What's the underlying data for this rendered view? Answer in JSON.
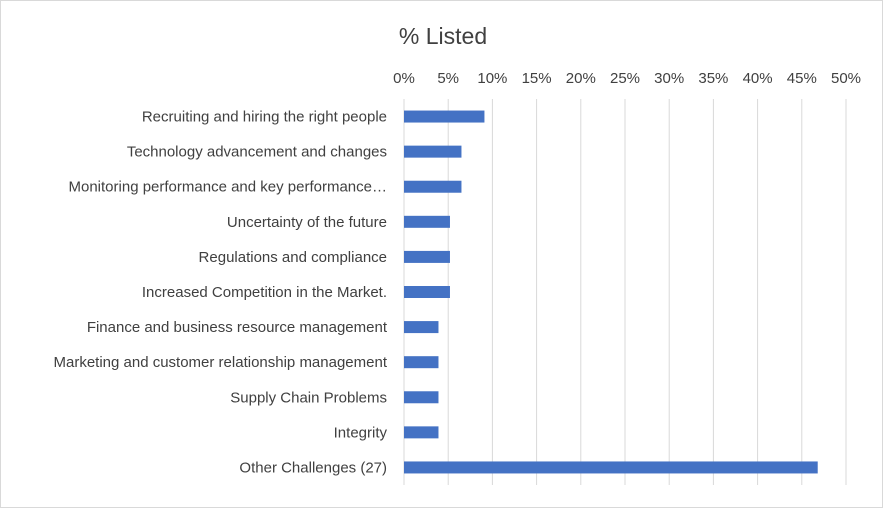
{
  "chart_data": {
    "type": "bar",
    "orientation": "horizontal",
    "title": "% Listed",
    "xlabel": "",
    "ylabel": "",
    "xlim": [
      0,
      0.5
    ],
    "x_tick_labels": [
      "0%",
      "5%",
      "10%",
      "15%",
      "20%",
      "25%",
      "30%",
      "35%",
      "40%",
      "45%",
      "50%"
    ],
    "x_axis_position": "top",
    "grid": true,
    "legend": "none",
    "bar_color": "#4472c4",
    "grid_color": "#d9d9d9",
    "categories": [
      "Recruiting and hiring the right people",
      "Technology advancement and changes",
      "Monitoring performance and key performance…",
      "Uncertainty of the future",
      "Regulations and compliance",
      "Increased Competition in the Market.",
      "Finance and business resource management",
      "Marketing and customer relationship management",
      "Supply Chain Problems",
      "Integrity",
      "Other Challenges (27)"
    ],
    "values": [
      0.091,
      0.065,
      0.065,
      0.052,
      0.052,
      0.052,
      0.039,
      0.039,
      0.039,
      0.039,
      0.468
    ]
  }
}
